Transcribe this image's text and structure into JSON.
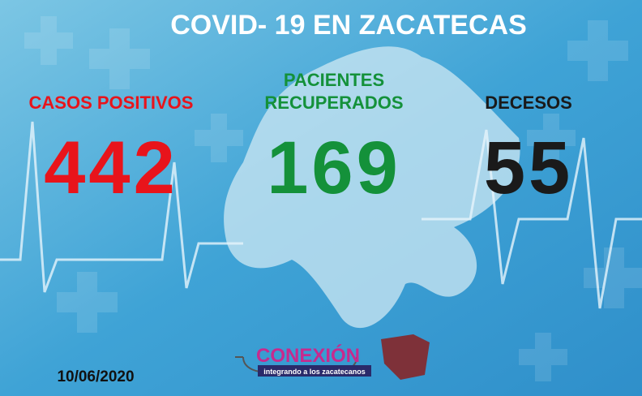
{
  "header": {
    "title": "COVID- 19 EN ZACATECAS"
  },
  "stats": [
    {
      "label": [
        "CASOS POSITIVOS"
      ],
      "value": 442,
      "color": "#e8141b"
    },
    {
      "label": [
        "PACIENTES",
        "RECUPERADOS"
      ],
      "value": 169,
      "color": "#14913a"
    },
    {
      "label": [
        "DECESOS"
      ],
      "value": 55,
      "color": "#1a1a1a"
    }
  ],
  "footer": {
    "date": "10/06/2020",
    "logo": "CONEXIÓN",
    "tagline": "integrando a los zacatecanos"
  }
}
